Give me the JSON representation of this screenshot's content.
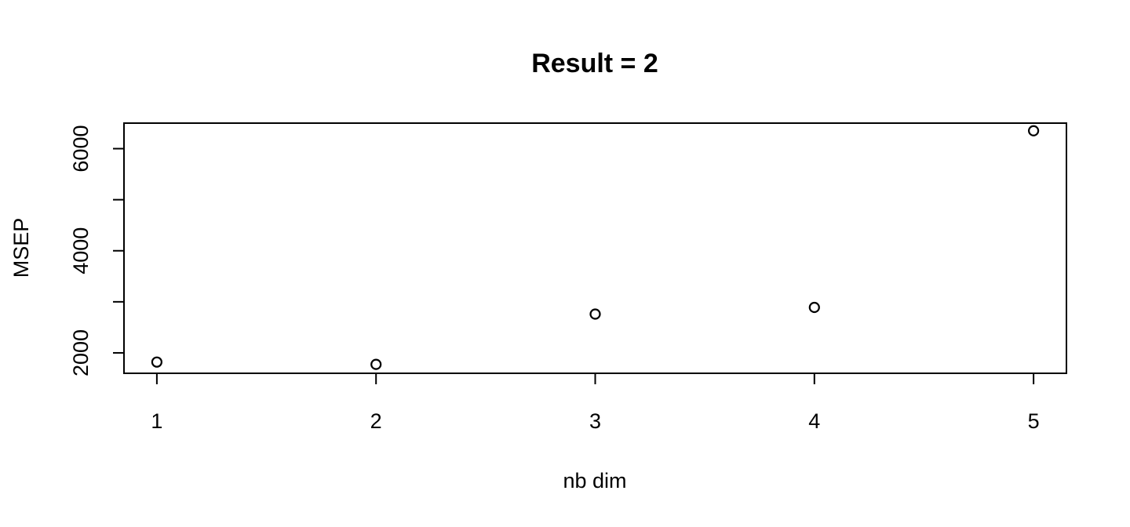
{
  "chart_data": {
    "type": "scatter",
    "title": "Result =  2",
    "xlabel": "nb dim",
    "ylabel": "MSEP",
    "x": [
      1,
      2,
      3,
      4,
      5
    ],
    "y": [
      1820,
      1775,
      2760,
      2890,
      6350
    ],
    "xticks": [
      "1",
      "2",
      "3",
      "4",
      "5"
    ],
    "yticks": [
      "2000",
      "4000",
      "6000"
    ],
    "xlim": [
      0.85,
      5.15
    ],
    "ylim": [
      1600,
      6500
    ],
    "marker": "open-circle",
    "grid": false,
    "legend": null
  }
}
